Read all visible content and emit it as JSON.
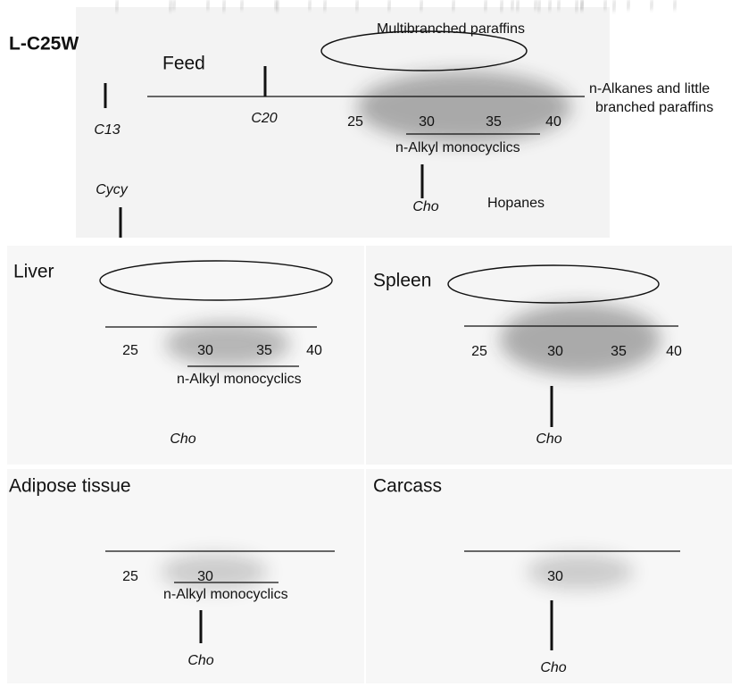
{
  "title": "L-C25W",
  "panels": [
    {
      "name": "Feed",
      "ticks": [
        25,
        30,
        35,
        40
      ],
      "ellipse_label": "Multibranched paraffins",
      "side_label": [
        "n-Alkanes and little",
        "branched paraffins"
      ],
      "compounds": [
        "C13",
        "C20",
        "Cycy",
        "Cho",
        "Hopanes"
      ],
      "band_label": "n-Alkyl monocyclics"
    },
    {
      "name": "Liver",
      "ticks": [
        25,
        30,
        35,
        40
      ],
      "compounds": [
        "Cho"
      ],
      "band_label": "n-Alkyl monocyclics"
    },
    {
      "name": "Spleen",
      "ticks": [
        25,
        30,
        35,
        40
      ],
      "compounds": [
        "Cho"
      ]
    },
    {
      "name": "Adipose tissue",
      "ticks": [
        25,
        30
      ],
      "compounds": [
        "Cho"
      ],
      "band_label": "n-Alkyl monocyclics"
    },
    {
      "name": "Carcass",
      "ticks": [
        30
      ],
      "compounds": [
        "Cho"
      ]
    }
  ]
}
